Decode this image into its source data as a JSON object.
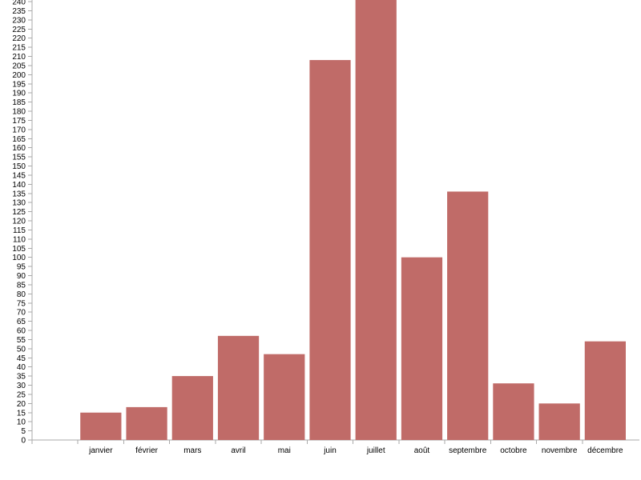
{
  "chart_data": {
    "type": "bar",
    "title": "",
    "xlabel": "",
    "ylabel": "",
    "categories": [
      "",
      "janvier",
      "février",
      "mars",
      "avril",
      "mai",
      "juin",
      "juillet",
      "août",
      "septembre",
      "octobre",
      "novembre",
      "décembre"
    ],
    "values": [
      null,
      15,
      18,
      35,
      57,
      47,
      208,
      241,
      100,
      136,
      31,
      20,
      54
    ],
    "ylim": [
      0,
      240
    ],
    "ytick_step": 5,
    "bar_color": "#c06b68",
    "axis_color": "#aaaaaa",
    "grid": false,
    "legend": "none"
  }
}
